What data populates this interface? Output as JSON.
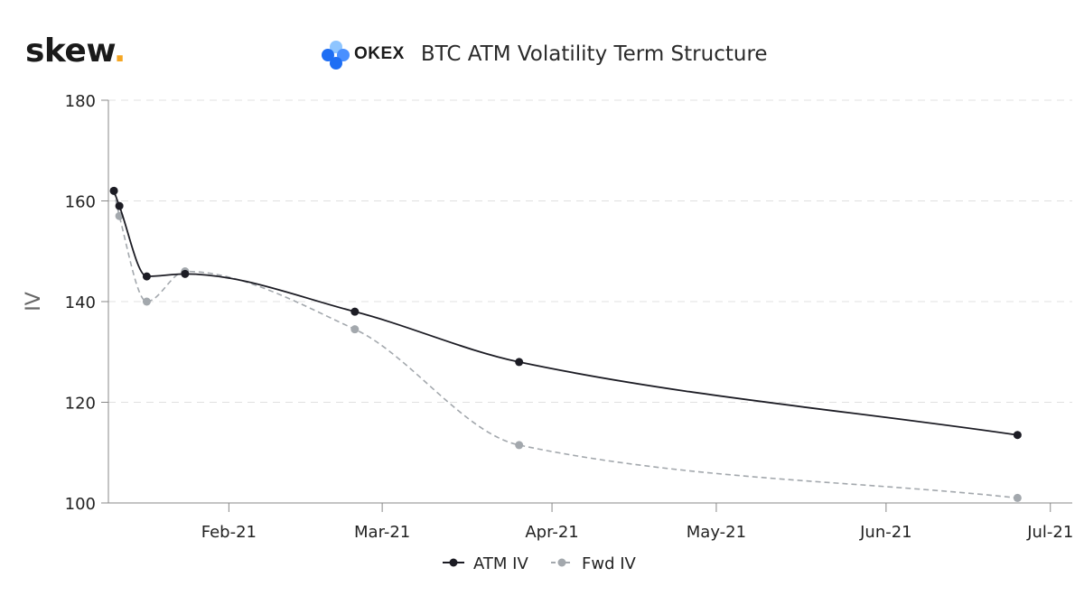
{
  "brand": {
    "logo_text": "skew",
    "logo_dot": "."
  },
  "header": {
    "exchange": "OKEX",
    "title": "BTC ATM Volatility Term Structure"
  },
  "colors": {
    "atm": "#1c1c24",
    "fwd": "#a3a8ad",
    "grid": "#e0e0e0",
    "axis": "#888888",
    "accent": "#f5a623",
    "okex_blue": "#1e6ef4"
  },
  "chart_data": {
    "type": "line",
    "title": "BTC ATM Volatility Term Structure",
    "xlabel": "",
    "ylabel": "IV",
    "ylim": [
      100,
      180
    ],
    "yticks": [
      100,
      120,
      140,
      160,
      180
    ],
    "x_axis": {
      "type": "date",
      "min": "2021-01-10",
      "max": "2021-07-05",
      "ticks": [
        {
          "date": "2021-02-01",
          "label": "Feb-21"
        },
        {
          "date": "2021-03-01",
          "label": "Mar-21"
        },
        {
          "date": "2021-04-01",
          "label": "Apr-21"
        },
        {
          "date": "2021-05-01",
          "label": "May-21"
        },
        {
          "date": "2021-06-01",
          "label": "Jun-21"
        },
        {
          "date": "2021-07-01",
          "label": "Jul-21"
        }
      ]
    },
    "grid": true,
    "legend_position": "bottom-center",
    "series": [
      {
        "name": "ATM IV",
        "style": "solid",
        "points": [
          {
            "x": "2021-01-11",
            "y": 162
          },
          {
            "x": "2021-01-12",
            "y": 159
          },
          {
            "x": "2021-01-17",
            "y": 145
          },
          {
            "x": "2021-01-24",
            "y": 145.5
          },
          {
            "x": "2021-02-24",
            "y": 138
          },
          {
            "x": "2021-03-26",
            "y": 128
          },
          {
            "x": "2021-06-25",
            "y": 113.5
          }
        ]
      },
      {
        "name": "Fwd IV",
        "style": "dashed",
        "points": [
          {
            "x": "2021-01-11",
            "y": 162
          },
          {
            "x": "2021-01-12",
            "y": 157
          },
          {
            "x": "2021-01-17",
            "y": 140
          },
          {
            "x": "2021-01-24",
            "y": 146
          },
          {
            "x": "2021-02-24",
            "y": 134.5
          },
          {
            "x": "2021-03-26",
            "y": 111.5
          },
          {
            "x": "2021-06-25",
            "y": 101
          }
        ]
      }
    ]
  }
}
